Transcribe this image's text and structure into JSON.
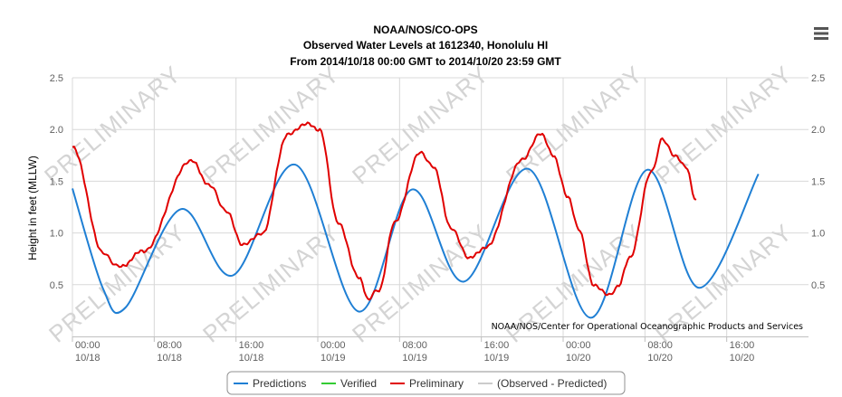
{
  "menu_icon": "hamburger-menu-icon",
  "chart_data": {
    "type": "line",
    "title": [
      "NOAA/NOS/CO-OPS",
      "Observed Water Levels at 1612340, Honolulu HI",
      "From 2014/10/18 00:00 GMT to 2014/10/20 23:59 GMT"
    ],
    "ylabel": "Height in feet (MLLW)",
    "ylim": [
      0,
      2.5
    ],
    "yticks": [
      "0.5",
      "1.0",
      "1.5",
      "2.0",
      "2.5"
    ],
    "ytick_values": [
      0.5,
      1.0,
      1.5,
      2.0,
      2.5
    ],
    "xlim": [
      0,
      72
    ],
    "xticks": [
      {
        "time": "00:00",
        "date": "10/18",
        "hour": 0
      },
      {
        "time": "08:00",
        "date": "10/18",
        "hour": 8
      },
      {
        "time": "16:00",
        "date": "10/18",
        "hour": 16
      },
      {
        "time": "00:00",
        "date": "10/19",
        "hour": 24
      },
      {
        "time": "08:00",
        "date": "10/19",
        "hour": 32
      },
      {
        "time": "16:00",
        "date": "10/19",
        "hour": 40
      },
      {
        "time": "00:00",
        "date": "10/20",
        "hour": 48
      },
      {
        "time": "08:00",
        "date": "10/20",
        "hour": 56
      },
      {
        "time": "16:00",
        "date": "10/20",
        "hour": 64
      }
    ],
    "grid": true,
    "legend_position": "bottom-center",
    "watermark": "PRELIMINARY",
    "credit": "NOAA/NOS/Center for Operational Oceanographic Products and Services",
    "series": [
      {
        "name": "Predictions",
        "color": "#1f7fd4",
        "points": [
          [
            0,
            1.43
          ],
          [
            3,
            0.46
          ],
          [
            5.2,
            0.28
          ],
          [
            10.6,
            1.23
          ],
          [
            15.7,
            0.59
          ],
          [
            21.8,
            1.66
          ],
          [
            28,
            0.24
          ],
          [
            33.2,
            1.42
          ],
          [
            38.3,
            0.53
          ],
          [
            44.6,
            1.62
          ],
          [
            50.7,
            0.18
          ],
          [
            56.2,
            1.61
          ],
          [
            61.3,
            0.47
          ],
          [
            67.1,
            1.57
          ]
        ]
      },
      {
        "name": "Verified",
        "color": "#33cc33",
        "points": []
      },
      {
        "name": "Preliminary",
        "color": "#e00000",
        "points": [
          [
            0,
            1.83
          ],
          [
            3,
            0.8
          ],
          [
            4.6,
            0.67
          ],
          [
            7,
            0.83
          ],
          [
            11.6,
            1.7
          ],
          [
            13.5,
            1.45
          ],
          [
            15.1,
            1.2
          ],
          [
            16.6,
            0.88
          ],
          [
            18.6,
            1.0
          ],
          [
            21,
            1.95
          ],
          [
            23,
            2.05
          ],
          [
            24.2,
            2.0
          ],
          [
            26,
            1.1
          ],
          [
            28,
            0.58
          ],
          [
            28.9,
            0.37
          ],
          [
            30,
            0.45
          ],
          [
            31.5,
            1.1
          ],
          [
            34,
            1.77
          ],
          [
            35.3,
            1.65
          ],
          [
            37,
            1.05
          ],
          [
            38.8,
            0.75
          ],
          [
            40.5,
            0.87
          ],
          [
            44,
            1.7
          ],
          [
            45.8,
            1.97
          ],
          [
            47,
            1.75
          ],
          [
            48.5,
            1.35
          ],
          [
            49.5,
            1.05
          ],
          [
            51,
            0.5
          ],
          [
            52.5,
            0.4
          ],
          [
            53.3,
            0.48
          ],
          [
            54.5,
            0.75
          ],
          [
            56.6,
            1.58
          ],
          [
            57.7,
            1.9
          ],
          [
            59,
            1.75
          ],
          [
            60,
            1.65
          ],
          [
            61,
            1.32
          ]
        ]
      },
      {
        "name": "(Observed - Predicted)",
        "color": "#cccccc",
        "points": []
      }
    ]
  }
}
